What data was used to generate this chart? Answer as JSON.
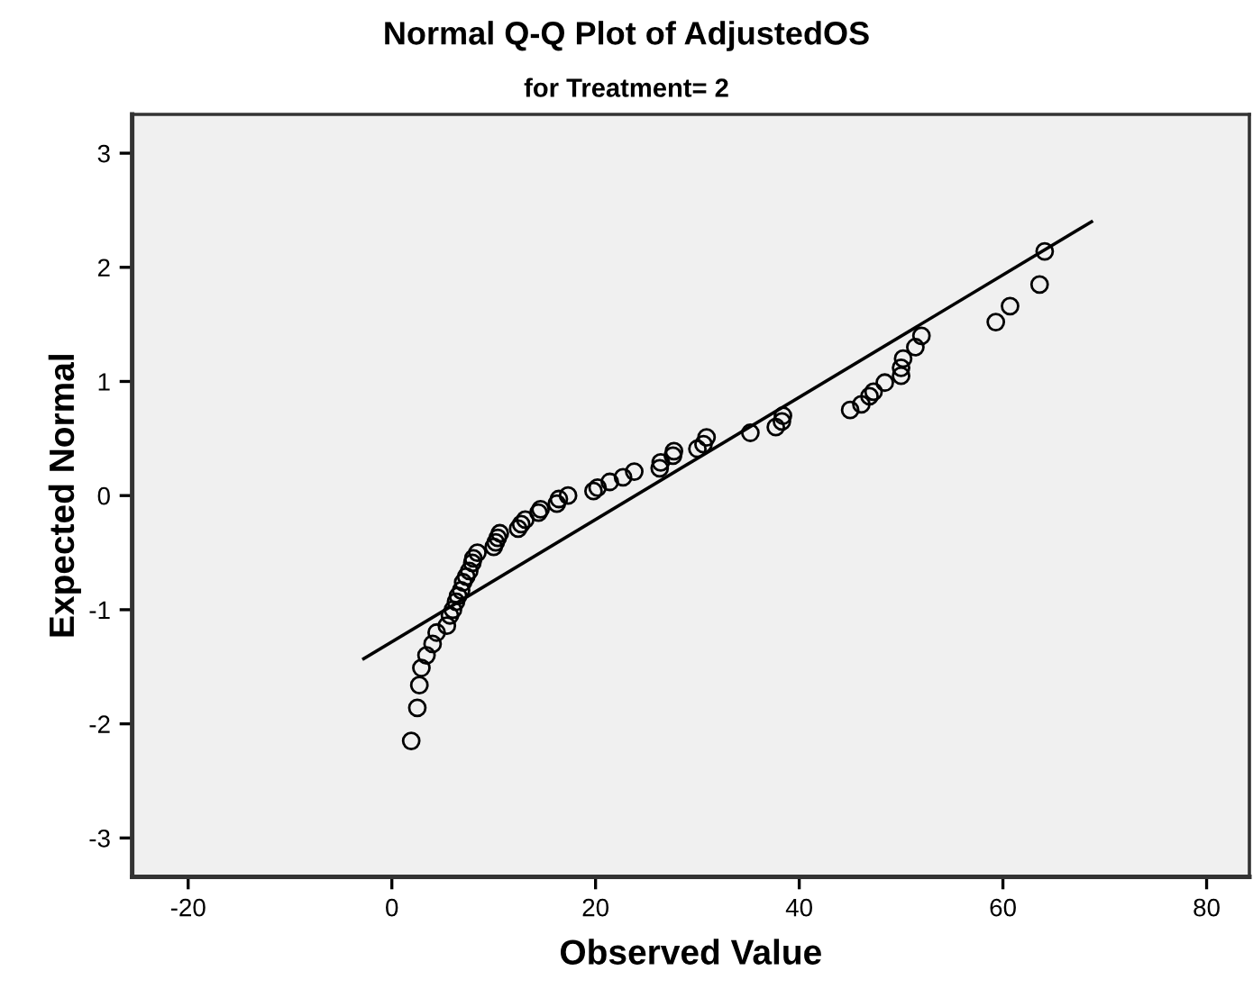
{
  "chart_data": {
    "type": "scatter",
    "title": "Normal Q-Q Plot of AdjustedOS",
    "subtitle": "for Treatment= 2",
    "xlabel": "Observed Value",
    "ylabel": "Expected Normal",
    "xlim": [
      -25.5,
      84.2
    ],
    "ylim": [
      -3.34,
      3.34
    ],
    "xticks": [
      -20,
      0,
      20,
      40,
      60,
      80
    ],
    "yticks": [
      -3,
      -2,
      -1,
      0,
      1,
      2,
      3
    ],
    "grid": false,
    "marker": "circle",
    "series": [
      {
        "color": "#000000",
        "x": [
          1.9,
          2.5,
          2.7,
          2.9,
          3.4,
          4.0,
          4.4,
          5.4,
          5.7,
          6.0,
          6.3,
          6.5,
          6.8,
          7.0,
          7.3,
          7.6,
          7.9,
          8.0,
          8.4,
          10.0,
          10.2,
          10.4,
          10.6,
          12.4,
          12.7,
          13.1,
          14.4,
          14.6,
          16.2,
          16.4,
          17.3,
          19.8,
          20.2,
          21.4,
          22.7,
          23.8,
          26.3,
          26.4,
          27.6,
          27.7,
          30.0,
          30.6,
          30.9,
          35.2,
          37.7,
          38.3,
          38.4,
          45.0,
          46.1,
          46.9,
          47.3,
          48.4,
          50.0,
          50.0,
          50.2,
          51.4,
          52.0,
          59.3,
          60.7,
          63.6,
          64.1
        ],
        "values": [
          -2.15,
          -1.86,
          -1.66,
          -1.51,
          -1.4,
          -1.3,
          -1.2,
          -1.14,
          -1.05,
          -1.0,
          -0.93,
          -0.88,
          -0.83,
          -0.76,
          -0.71,
          -0.66,
          -0.59,
          -0.55,
          -0.5,
          -0.45,
          -0.41,
          -0.37,
          -0.33,
          -0.29,
          -0.25,
          -0.21,
          -0.15,
          -0.12,
          -0.07,
          -0.03,
          0.0,
          0.04,
          0.07,
          0.12,
          0.16,
          0.21,
          0.24,
          0.29,
          0.35,
          0.39,
          0.41,
          0.45,
          0.51,
          0.55,
          0.6,
          0.65,
          0.7,
          0.75,
          0.8,
          0.87,
          0.91,
          0.99,
          1.05,
          1.12,
          1.2,
          1.3,
          1.4,
          1.52,
          1.66,
          1.85,
          2.14
        ]
      },
      {
        "type": "line",
        "color": "#000000",
        "marker": "none",
        "x": [
          -2.76,
          68.7
        ],
        "values": [
          -1.43,
          2.4
        ]
      }
    ]
  }
}
